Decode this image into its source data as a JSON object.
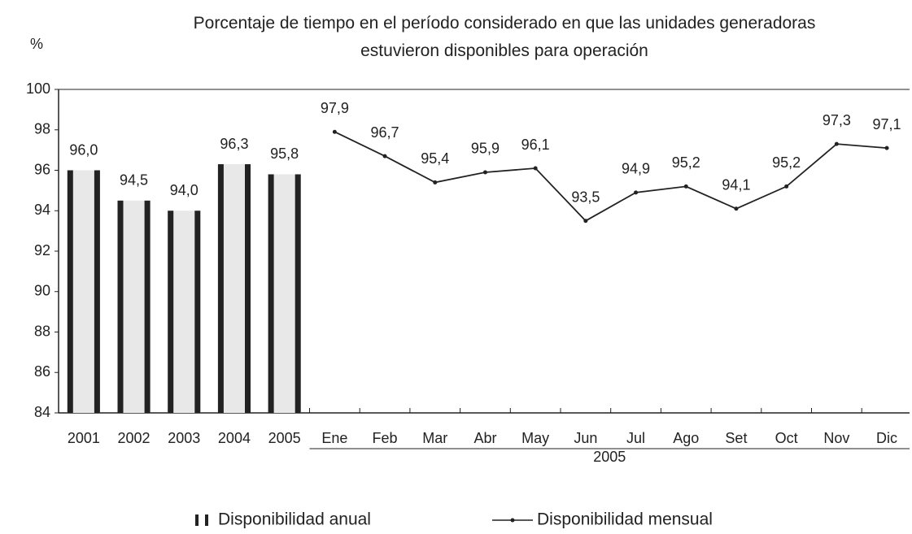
{
  "chart_data": [
    {
      "type": "bar",
      "title": "Porcentaje de tiempo en el período considerado en que las unidades generadoras estuvieron disponibles para operación",
      "ylabel": "%",
      "name": "Disponibilidad anual",
      "color": "#222222",
      "categories": [
        "2001",
        "2002",
        "2003",
        "2004",
        "2005"
      ],
      "values": [
        96.0,
        94.5,
        94.0,
        96.3,
        95.8
      ],
      "value_labels": [
        "96,0",
        "94,5",
        "94,0",
        "96,3",
        "95,8"
      ],
      "ylim": [
        84,
        100
      ],
      "yticks": [
        84,
        86,
        88,
        90,
        92,
        94,
        96,
        98,
        100
      ]
    },
    {
      "type": "line",
      "name": "Disponibilidad mensual",
      "color": "#222222",
      "xlabel": "2005",
      "categories": [
        "Ene",
        "Feb",
        "Mar",
        "Abr",
        "May",
        "Jun",
        "Jul",
        "Ago",
        "Set",
        "Oct",
        "Nov",
        "Dic"
      ],
      "values": [
        97.9,
        96.7,
        95.4,
        95.9,
        96.1,
        93.5,
        94.9,
        95.2,
        94.1,
        95.2,
        97.3,
        97.1
      ],
      "value_labels": [
        "97,9",
        "96,7",
        "95,4",
        "95,9",
        "96,1",
        "93,5",
        "94,9",
        "95,2",
        "94,1",
        "95,2",
        "97,3",
        "97,1"
      ],
      "ylim": [
        84,
        100
      ]
    }
  ]
}
